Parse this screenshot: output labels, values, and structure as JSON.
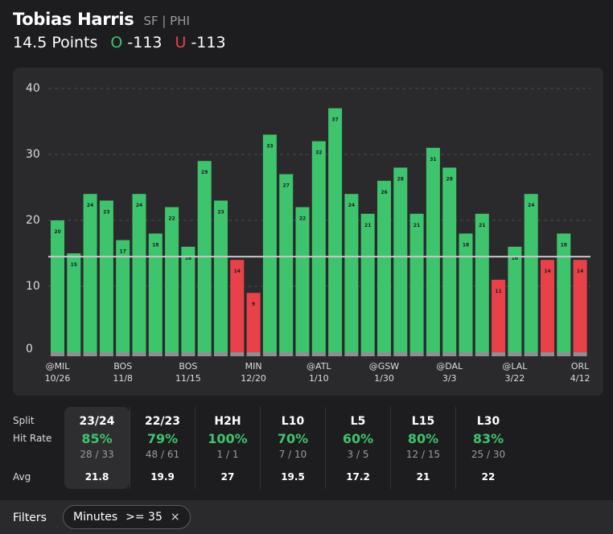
{
  "header": {
    "player": "Tobias Harris",
    "team": "SF | PHI",
    "line": "14.5 Points",
    "over_letter": "O",
    "over_odds": "-113",
    "under_letter": "U",
    "under_odds": "-113"
  },
  "colors": {
    "over": "#3ec46d",
    "under": "#e8414a",
    "line": "#c8c8c8",
    "panel": "#2a2a2c",
    "background": "#1d1d1f"
  },
  "chart_data": {
    "type": "bar",
    "ylim": [
      0,
      40
    ],
    "yticks": [
      0,
      10,
      20,
      30,
      40
    ],
    "threshold": 14.5,
    "grid": true,
    "values": [
      20,
      15,
      24,
      23,
      17,
      24,
      18,
      22,
      16,
      29,
      23,
      14,
      9,
      33,
      27,
      22,
      32,
      37,
      24,
      21,
      26,
      28,
      21,
      31,
      28,
      18,
      21,
      11,
      16,
      24,
      14,
      18,
      14
    ],
    "x_labels": [
      {
        "index": 0,
        "top": "@MIL",
        "bottom": "10/26"
      },
      {
        "index": 4,
        "top": "BOS",
        "bottom": "11/8"
      },
      {
        "index": 8,
        "top": "BOS",
        "bottom": "11/15"
      },
      {
        "index": 12,
        "top": "MIN",
        "bottom": "12/20"
      },
      {
        "index": 16,
        "top": "@ATL",
        "bottom": "1/10"
      },
      {
        "index": 20,
        "top": "@GSW",
        "bottom": "1/30"
      },
      {
        "index": 24,
        "top": "@DAL",
        "bottom": "3/3"
      },
      {
        "index": 28,
        "top": "@LAL",
        "bottom": "3/22"
      },
      {
        "index": 32,
        "top": "ORL",
        "bottom": "4/12"
      }
    ]
  },
  "stats": {
    "labels": {
      "split": "Split",
      "hit_rate": "Hit Rate",
      "avg": "Avg"
    },
    "columns": [
      {
        "name": "23/24",
        "rate": "85%",
        "frac": "28 / 33",
        "avg": "21.8"
      },
      {
        "name": "22/23",
        "rate": "79%",
        "frac": "48 / 61",
        "avg": "19.9"
      },
      {
        "name": "H2H",
        "rate": "100%",
        "frac": "1 / 1",
        "avg": "27"
      },
      {
        "name": "L10",
        "rate": "70%",
        "frac": "7 / 10",
        "avg": "19.5"
      },
      {
        "name": "L5",
        "rate": "60%",
        "frac": "3 / 5",
        "avg": "17.2"
      },
      {
        "name": "L15",
        "rate": "80%",
        "frac": "12 / 15",
        "avg": "21"
      },
      {
        "name": "L30",
        "rate": "83%",
        "frac": "25 / 30",
        "avg": "22"
      }
    ]
  },
  "filters": {
    "label": "Filters",
    "chip_label": "Minutes",
    "chip_value": ">= 35",
    "close_icon": "×"
  }
}
